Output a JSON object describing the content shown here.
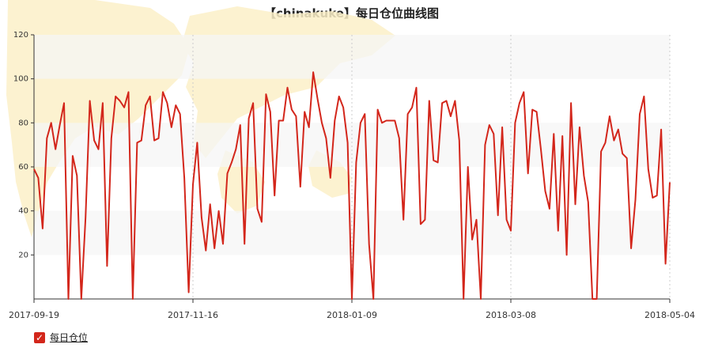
{
  "chart_data": {
    "type": "line",
    "title": "【chinakuke】每日仓位曲线图",
    "ylim": [
      0,
      120
    ],
    "yticks": [
      20,
      40,
      60,
      80,
      100,
      120
    ],
    "xtick_labels": [
      "2017-09-19",
      "2017-11-16",
      "2018-01-09",
      "2018-03-08",
      "2018-05-04"
    ],
    "grid": "horizontal bands and dotted vertical lines",
    "legend_placement": "bottom-left",
    "series": [
      {
        "name": "每日仓位",
        "color": "#d3261b",
        "values": [
          59,
          55,
          32,
          73,
          80,
          68,
          79,
          89,
          0,
          65,
          56,
          0,
          37,
          90,
          72,
          68,
          89,
          15,
          73,
          92,
          90,
          87,
          94,
          0,
          71,
          72,
          88,
          92,
          72,
          73,
          94,
          89,
          78,
          88,
          84,
          55,
          3,
          52,
          71,
          37,
          22,
          43,
          23,
          40,
          25,
          57,
          62,
          68,
          79,
          25,
          82,
          89,
          41,
          35,
          93,
          85,
          47,
          81,
          81,
          96,
          86,
          83,
          51,
          85,
          78,
          103,
          91,
          80,
          73,
          55,
          81,
          92,
          87,
          71,
          0,
          62,
          80,
          84,
          25,
          0,
          86,
          80,
          81,
          81,
          81,
          73,
          36,
          84,
          87,
          96,
          34,
          36,
          90,
          63,
          62,
          89,
          90,
          83,
          90,
          72,
          0,
          60,
          27,
          36,
          0,
          70,
          79,
          75,
          38,
          78,
          36,
          31,
          80,
          89,
          94,
          57,
          86,
          85,
          68,
          49,
          41,
          75,
          31,
          74,
          20,
          89,
          43,
          78,
          56,
          44,
          0,
          0,
          67,
          71,
          83,
          72,
          77,
          66,
          64,
          23,
          45,
          84,
          92,
          59,
          46,
          47,
          77,
          16,
          53
        ]
      }
    ]
  }
}
